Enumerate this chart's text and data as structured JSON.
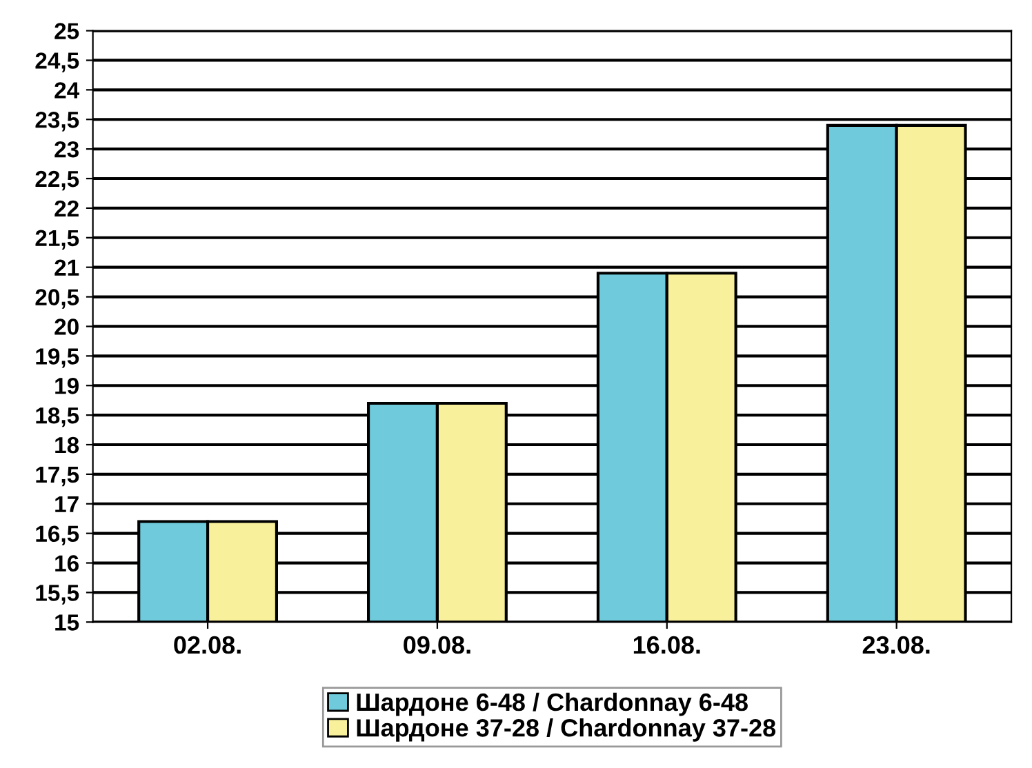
{
  "chart_data": {
    "type": "bar",
    "categories": [
      "02.08.",
      "09.08.",
      "16.08.",
      "23.08."
    ],
    "series": [
      {
        "name": "Шардоне 6-48 / Chardonnay 6-48",
        "color": "#6fcbdc",
        "values": [
          16.7,
          18.7,
          20.9,
          23.4
        ]
      },
      {
        "name": "Шардоне 37-28 / Chardonnay 37-28",
        "color": "#f8f09a",
        "values": [
          16.7,
          18.7,
          20.9,
          23.4
        ]
      }
    ],
    "ylim": [
      15,
      25
    ],
    "yticks": [
      15,
      {
        "value": 15.5,
        "label": "15,5"
      },
      16,
      {
        "value": 16.5,
        "label": "16,5"
      },
      17,
      {
        "value": 17.5,
        "label": "17,5"
      },
      18,
      {
        "value": 18.5,
        "label": "18,5"
      },
      19,
      {
        "value": 19.5,
        "label": "19,5"
      },
      20,
      {
        "value": 20.5,
        "label": "20,5"
      },
      21,
      {
        "value": 21.5,
        "label": "21,5"
      },
      22,
      {
        "value": 22.5,
        "label": "22,5"
      },
      23,
      {
        "value": 23.5,
        "label": "23,5"
      },
      24,
      {
        "value": 24.5,
        "label": "24,5"
      },
      25
    ],
    "grid": "y",
    "legend": "bottom"
  }
}
